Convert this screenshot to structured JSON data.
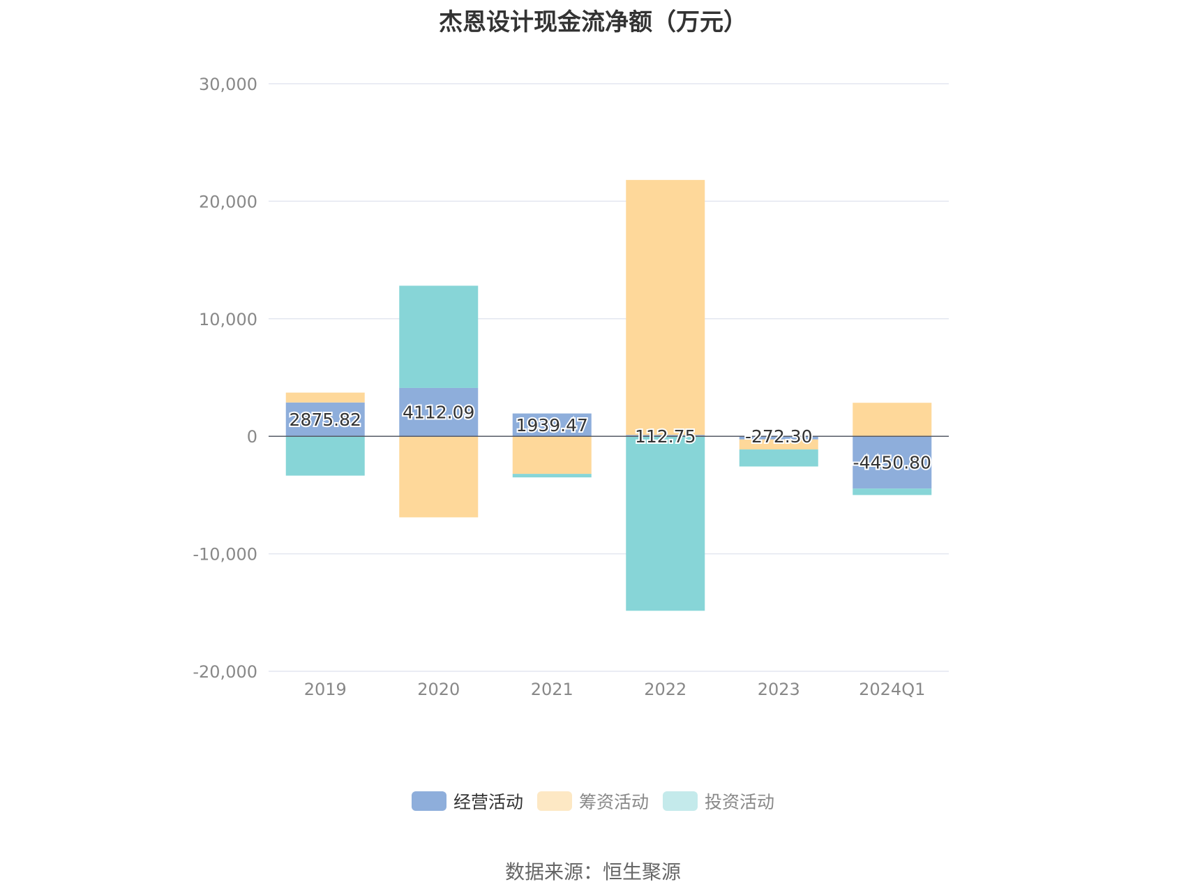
{
  "chart_data": {
    "type": "bar",
    "stacked": true,
    "title": "杰恩设计现金流净额（万元）",
    "categories": [
      "2019",
      "2020",
      "2021",
      "2022",
      "2023",
      "2024Q1"
    ],
    "series": [
      {
        "name": "经营活动",
        "color": "#8eaedb",
        "values": [
          2875.82,
          4112.09,
          1939.47,
          112.75,
          -272.3,
          -4450.8
        ]
      },
      {
        "name": "筹资活动",
        "color": "#fed89a",
        "values": [
          840,
          -6900,
          -3200,
          21700,
          -850,
          2850
        ]
      },
      {
        "name": "投资活动",
        "color": "#87d5d7",
        "values": [
          -3350,
          8700,
          -300,
          -14850,
          -1450,
          -550
        ]
      }
    ],
    "data_labels": [
      "2875.82",
      "4112.09",
      "1939.47",
      "112.75",
      "-272.30",
      "-4450.80"
    ],
    "ylim": [
      -20000,
      30000
    ],
    "yticks": [
      30000,
      20000,
      10000,
      0,
      -10000,
      -20000
    ],
    "ytick_labels": [
      "30,000",
      "20,000",
      "10,000",
      "0",
      "-10,000",
      "-20,000"
    ],
    "grid": true,
    "legend_position": "bottom"
  },
  "legend_items": [
    {
      "label": "经营活动",
      "color": "#8eaedb",
      "text_color": "#333333"
    },
    {
      "label": "筹资活动",
      "color": "#fde8c4",
      "text_color": "#888888"
    },
    {
      "label": "投资活动",
      "color": "#c4eaeb",
      "text_color": "#888888"
    }
  ],
  "source": "数据来源：恒生聚源"
}
